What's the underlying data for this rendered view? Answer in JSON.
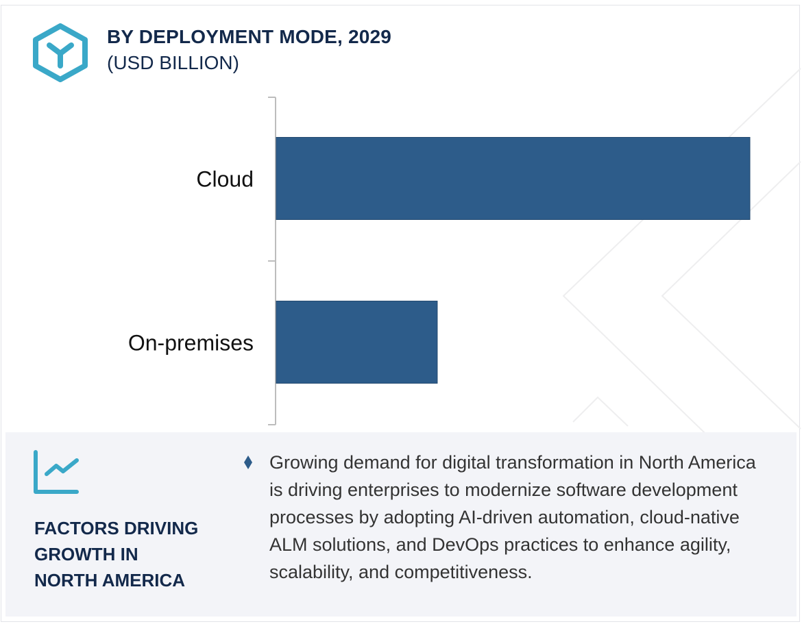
{
  "header": {
    "title": "BY DEPLOYMENT MODE, 2029",
    "subtitle": "(USD BILLION)",
    "logo_icon": "hexagon-y-icon"
  },
  "colors": {
    "bar": "#2d5c8a",
    "accent": "#3aa8c8",
    "title": "#13294b",
    "panel_bg": "#f3f4f8"
  },
  "chart_data": {
    "type": "bar",
    "orientation": "horizontal",
    "title": "BY DEPLOYMENT MODE, 2029",
    "subtitle": "(USD BILLION)",
    "xlabel": "",
    "ylabel": "",
    "categories": [
      "Cloud",
      "On-premises"
    ],
    "values": [
      100,
      34
    ],
    "values_note": "relative bar lengths (no value labels shown); On-premises ≈ 34% of Cloud",
    "xlim": [
      0,
      100
    ],
    "grid": false,
    "legend": "none"
  },
  "panel": {
    "icon": "line-chart-icon",
    "title_lines": [
      "FACTORS DRIVING",
      "GROWTH IN",
      "NORTH AMERICA"
    ],
    "bullet_icon": "diamond-bullet-icon",
    "text": "Growing demand for digital transformation in North America is driving enterprises to modernize software development processes by adopting AI-driven automation, cloud-native ALM solutions, and DevOps practices to enhance agility, scalability, and competitiveness."
  }
}
